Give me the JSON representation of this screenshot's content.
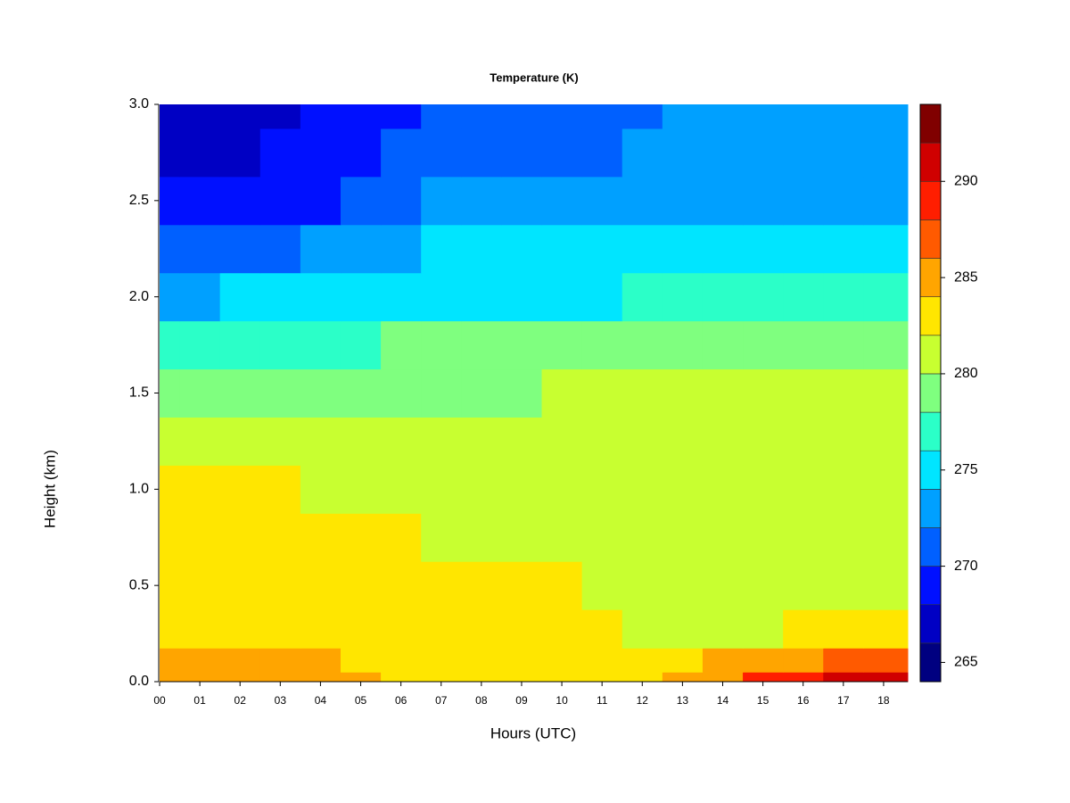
{
  "chart_data": {
    "type": "contour",
    "title": "Temperature (K)",
    "xlabel": "Hours (UTC)",
    "ylabel": "Height (km)",
    "x": [
      0,
      1,
      2,
      3,
      4,
      5,
      6,
      7,
      8,
      9,
      10,
      11,
      12,
      13,
      14,
      15,
      16,
      17,
      18
    ],
    "y": [
      0,
      0.1,
      0.25,
      0.5,
      0.75,
      1.0,
      1.25,
      1.5,
      1.75,
      2.0,
      2.25,
      2.5,
      2.75,
      3.0
    ],
    "z": [
      [
        285,
        285,
        285,
        285,
        285,
        284,
        283.5,
        283,
        283,
        283,
        283,
        283,
        283.5,
        284.5,
        285.5,
        288,
        289,
        290,
        290
      ],
      [
        284.5,
        284.5,
        284.5,
        284.5,
        284,
        283,
        283,
        283,
        283,
        283,
        283,
        283,
        283,
        283.5,
        284,
        285,
        285.5,
        286,
        286.5
      ],
      [
        283,
        283,
        283,
        283,
        283,
        283,
        283,
        282.5,
        282.5,
        282.5,
        282.5,
        282,
        281.5,
        280.5,
        280.5,
        281.5,
        282,
        282,
        282.5
      ],
      [
        283,
        283,
        283,
        283,
        283,
        283,
        283,
        283,
        282.5,
        282.5,
        282,
        281.5,
        281,
        280.5,
        280.5,
        281,
        281,
        281,
        281.5
      ],
      [
        282.5,
        282.5,
        282.5,
        282.5,
        282.5,
        282,
        282,
        281.5,
        281,
        281,
        281,
        281,
        281,
        281,
        281,
        281,
        281,
        281,
        281
      ],
      [
        282,
        282,
        282,
        282,
        281.5,
        281,
        281,
        281,
        281,
        281,
        281,
        281,
        281,
        281,
        281,
        281,
        281,
        281,
        281
      ],
      [
        280.5,
        280.5,
        280.5,
        280.5,
        280.5,
        280.5,
        280.5,
        280.5,
        280.5,
        280.5,
        280.5,
        280.5,
        280.5,
        280.5,
        280.5,
        280.5,
        280.5,
        280.5,
        280.5
      ],
      [
        279,
        279,
        279,
        279,
        279,
        279,
        279.5,
        279.5,
        279.5,
        279.5,
        280,
        280,
        280,
        280,
        280,
        280,
        280,
        280,
        280
      ],
      [
        276.5,
        277,
        277,
        277,
        277.5,
        277.5,
        278,
        278,
        278,
        278,
        278,
        278,
        278.5,
        278.5,
        278.5,
        278.5,
        279,
        279,
        279
      ],
      [
        273,
        273.5,
        274,
        274,
        274.5,
        274.5,
        275.5,
        275.5,
        275.5,
        275.5,
        275.5,
        275.5,
        276,
        276.5,
        276.5,
        276.5,
        276.5,
        276.5,
        276.5
      ],
      [
        271.5,
        271.5,
        271.5,
        271.5,
        272,
        272,
        273.5,
        274,
        274,
        274,
        274,
        274.5,
        275,
        275,
        275,
        275,
        275,
        275,
        275
      ],
      [
        269,
        269,
        269,
        269.5,
        269.5,
        270,
        271.5,
        272,
        272.5,
        272.5,
        272.5,
        272.5,
        273,
        273.5,
        273.5,
        273.5,
        273.5,
        273.5,
        273.5
      ],
      [
        267,
        267,
        267,
        268,
        268,
        269,
        270.5,
        271,
        271.5,
        271.5,
        271.5,
        271.5,
        272,
        272.5,
        272.5,
        272.5,
        272.5,
        272.5,
        272.5
      ],
      [
        266,
        266,
        266,
        267,
        268,
        268,
        269.5,
        270,
        270.5,
        270.5,
        270.5,
        271,
        271.5,
        272,
        272,
        272,
        272,
        272,
        272
      ]
    ],
    "xlim": [
      0,
      18.6
    ],
    "ylim": [
      0,
      3
    ],
    "xticks": [
      {
        "value": 0,
        "label": "00"
      },
      {
        "value": 1,
        "label": "01"
      },
      {
        "value": 2,
        "label": "02"
      },
      {
        "value": 3,
        "label": "03"
      },
      {
        "value": 4,
        "label": "04"
      },
      {
        "value": 5,
        "label": "05"
      },
      {
        "value": 6,
        "label": "06"
      },
      {
        "value": 7,
        "label": "07"
      },
      {
        "value": 8,
        "label": "08"
      },
      {
        "value": 9,
        "label": "09"
      },
      {
        "value": 10,
        "label": "10"
      },
      {
        "value": 11,
        "label": "11"
      },
      {
        "value": 12,
        "label": "12"
      },
      {
        "value": 13,
        "label": "13"
      },
      {
        "value": 14,
        "label": "14"
      },
      {
        "value": 15,
        "label": "15"
      },
      {
        "value": 16,
        "label": "16"
      },
      {
        "value": 17,
        "label": "17"
      },
      {
        "value": 18,
        "label": "18"
      }
    ],
    "yticks": [
      {
        "value": 0,
        "label": "0.0"
      },
      {
        "value": 0.5,
        "label": "0.5"
      },
      {
        "value": 1,
        "label": "1.0"
      },
      {
        "value": 1.5,
        "label": "1.5"
      },
      {
        "value": 2,
        "label": "2.0"
      },
      {
        "value": 2.5,
        "label": "2.5"
      },
      {
        "value": 3,
        "label": "3.0"
      }
    ],
    "levels": [
      264,
      266,
      268,
      270,
      272,
      274,
      276,
      278,
      280,
      282,
      284,
      286,
      288,
      290,
      292,
      294
    ],
    "colors": [
      "#000080",
      "#0000c4",
      "#0010ff",
      "#0060ff",
      "#00a0ff",
      "#00e5ff",
      "#2bffc8",
      "#7fff7f",
      "#c8ff30",
      "#ffe600",
      "#ffa500",
      "#ff5a00",
      "#ff1e00",
      "#d00000",
      "#800000"
    ],
    "colorbar_ticks": [
      265,
      270,
      275,
      280,
      285,
      290
    ]
  }
}
